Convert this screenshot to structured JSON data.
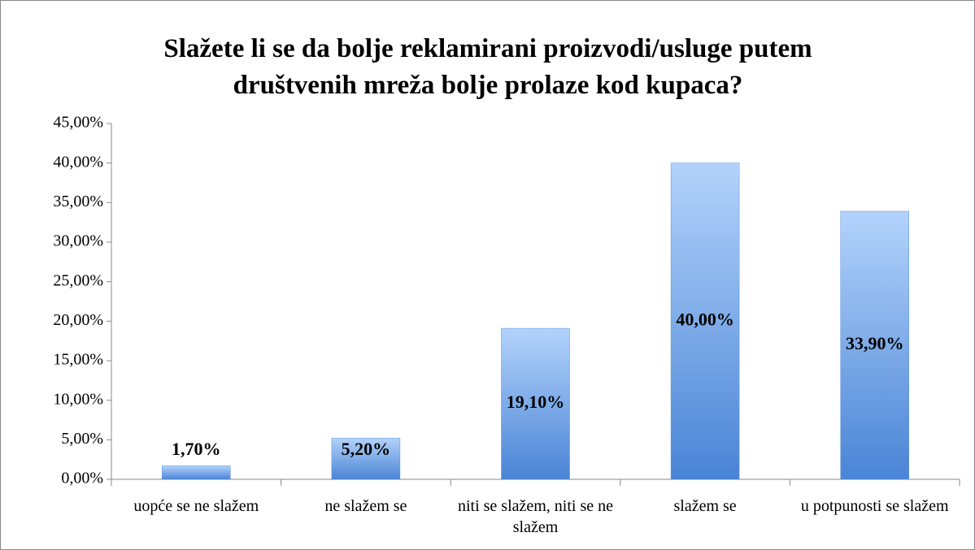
{
  "chart_data": {
    "type": "bar",
    "title": "Slažete li se da bolje reklamirani proizvodi/usluge putem društvenih mreža bolje prolaze kod kupaca?",
    "categories": [
      "uopće se ne slažem",
      "ne slažem se",
      "niti se slažem, niti se ne slažem",
      "slažem se",
      "u potpunosti se slažem"
    ],
    "values": [
      1.7,
      5.2,
      19.1,
      40.0,
      33.9
    ],
    "value_labels": [
      "1,70%",
      "5,20%",
      "19,10%",
      "40,00%",
      "33,90%"
    ],
    "color": "#6a9fe4",
    "ylim": [
      0,
      45
    ],
    "yticks": [
      {
        "value": 0,
        "label": "0,00%"
      },
      {
        "value": 5,
        "label": "5,00%"
      },
      {
        "value": 10,
        "label": "10,00%"
      },
      {
        "value": 15,
        "label": "15,00%"
      },
      {
        "value": 20,
        "label": "20,00%"
      },
      {
        "value": 25,
        "label": "25,00%"
      },
      {
        "value": 30,
        "label": "30,00%"
      },
      {
        "value": 35,
        "label": "35,00%"
      },
      {
        "value": 40,
        "label": "40,00%"
      },
      {
        "value": 45,
        "label": "45,00%"
      }
    ],
    "grid": false
  }
}
